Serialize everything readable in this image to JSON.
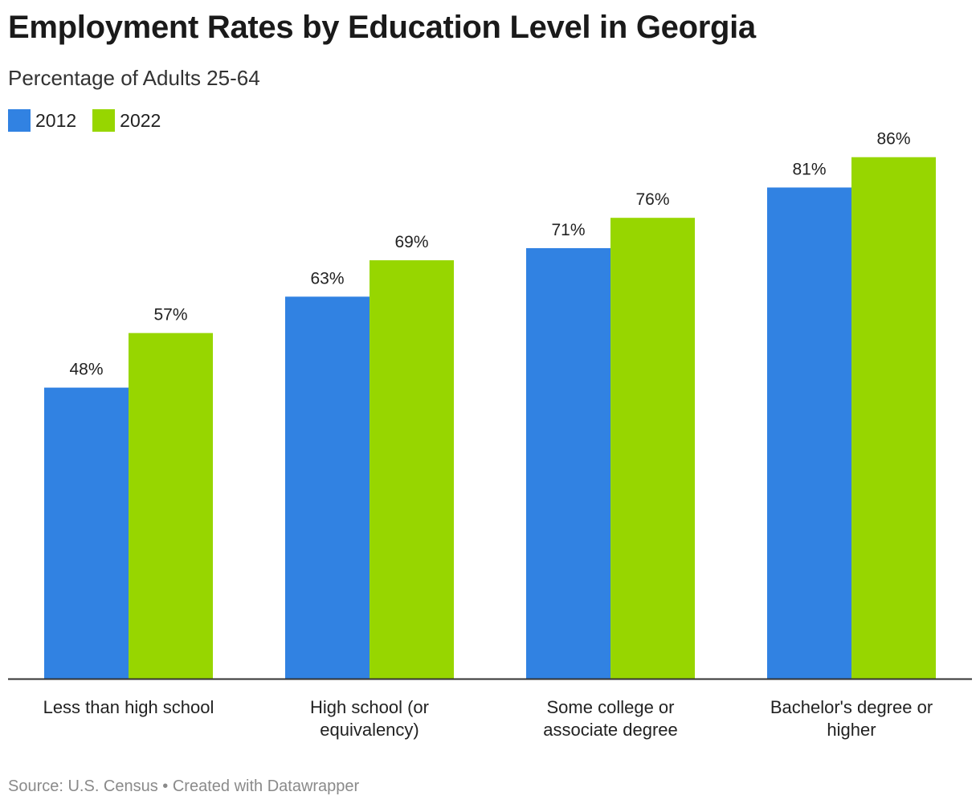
{
  "title": "Employment Rates by Education Level in Georgia",
  "subtitle": "Percentage of Adults 25-64",
  "source": "Source: U.S. Census • Created with Datawrapper",
  "colors": {
    "series_2012": "#3182e2",
    "series_2022": "#97d600",
    "text": "#222222",
    "axis": "#333333"
  },
  "chart_data": {
    "type": "bar",
    "title": "Employment Rates by Education Level in Georgia",
    "subtitle": "Percentage of Adults 25-64",
    "categories": [
      "Less than high school",
      "High school (or equivalency)",
      "Some college or associate degree",
      "Bachelor's degree or higher"
    ],
    "category_lines": [
      [
        "Less than high school"
      ],
      [
        "High school (or",
        "equivalency)"
      ],
      [
        "Some college or",
        "associate degree"
      ],
      [
        "Bachelor's degree or",
        "higher"
      ]
    ],
    "series": [
      {
        "name": "2012",
        "values": [
          48,
          63,
          71,
          81
        ],
        "labels": [
          "48%",
          "63%",
          "71%",
          "81%"
        ]
      },
      {
        "name": "2022",
        "values": [
          57,
          69,
          76,
          86
        ],
        "labels": [
          "57%",
          "69%",
          "76%",
          "86%"
        ]
      }
    ],
    "ylim": [
      0,
      100
    ],
    "grid": false,
    "legend": "top-left",
    "data_labels": true
  }
}
